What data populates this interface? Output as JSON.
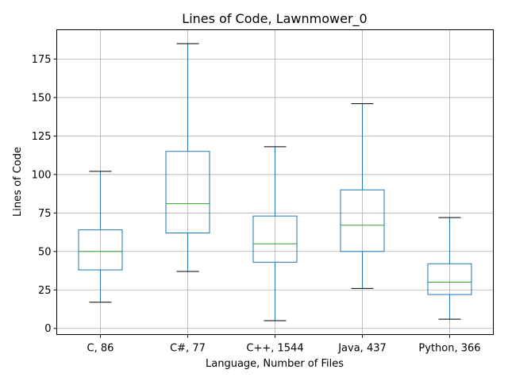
{
  "chart_data": {
    "type": "box",
    "title": "Lines of Code, Lawnmower_0",
    "xlabel": "Language, Number of Files",
    "ylabel": "Lines of Code",
    "ylim": [
      -4,
      194
    ],
    "yticks": [
      0,
      25,
      50,
      75,
      100,
      125,
      150,
      175
    ],
    "grid": true,
    "colors": {
      "box": "#1f77b4",
      "median": "#2ca02c",
      "whisker_cap": "#000000",
      "grid": "#b0b0b0"
    },
    "categories": [
      "C, 86",
      "C#, 77",
      "C++, 1544",
      "Java, 437",
      "Python, 366"
    ],
    "boxes": [
      {
        "whisker_low": 17,
        "q1": 38,
        "median": 50,
        "q3": 64,
        "whisker_high": 102
      },
      {
        "whisker_low": 37,
        "q1": 62,
        "median": 81,
        "q3": 115,
        "whisker_high": 185
      },
      {
        "whisker_low": 5,
        "q1": 43,
        "median": 55,
        "q3": 73,
        "whisker_high": 118
      },
      {
        "whisker_low": 26,
        "q1": 50,
        "median": 67,
        "q3": 90,
        "whisker_high": 146
      },
      {
        "whisker_low": 6,
        "q1": 22,
        "median": 30,
        "q3": 42,
        "whisker_high": 72
      }
    ]
  }
}
